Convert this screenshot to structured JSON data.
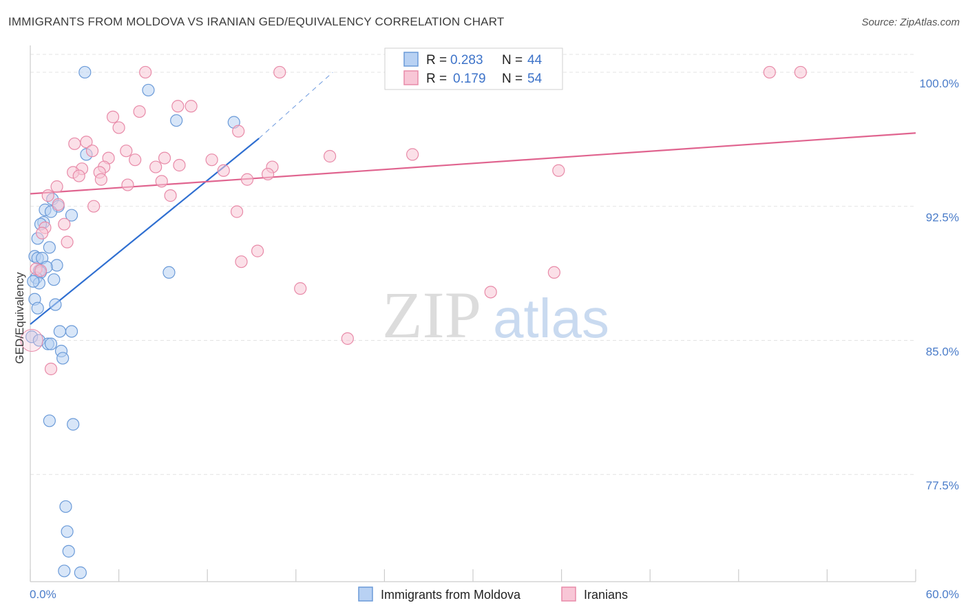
{
  "title": "IMMIGRANTS FROM MOLDOVA VS IRANIAN GED/EQUIVALENCY CORRELATION CHART",
  "source": "Source: ZipAtlas.com",
  "watermark": {
    "zip": "ZIP",
    "atlas": "atlas"
  },
  "legend": {
    "r_label": "R =",
    "n_label": "N =",
    "rows": [
      {
        "r": "0.283",
        "n": "44"
      },
      {
        "r": "0.179",
        "n": "54"
      }
    ]
  },
  "chart_data": {
    "type": "scatter",
    "title": "IMMIGRANTS FROM MOLDOVA VS IRANIAN GED/EQUIVALENCY CORRELATION CHART",
    "xlabel": "",
    "ylabel": "GED/Equivalency",
    "xlim": [
      0,
      60
    ],
    "ylim": [
      71.5,
      101.5
    ],
    "x_tick_labels": [
      "0.0%",
      "60.0%"
    ],
    "y_ticks": [
      77.5,
      85.0,
      92.5,
      100.0
    ],
    "y_tick_labels": [
      "77.5%",
      "85.0%",
      "92.5%",
      "100.0%"
    ],
    "grid": true,
    "legend_position": "top-center",
    "colors": {
      "moldova_fill": "#b8d1f3",
      "moldova_stroke": "#6a9ad8",
      "moldova_line": "#2f6fd1",
      "iran_fill": "#f8c6d6",
      "iran_stroke": "#e88aa8",
      "iran_line": "#e0648f",
      "grid": "#e3e3e3",
      "axis": "#cccccc"
    },
    "series": [
      {
        "name": "Immigrants from Moldova",
        "r": 0.283,
        "n": 44,
        "trend": {
          "x0": 0.0,
          "y0": 85.9,
          "x1": 15.5,
          "y1": 96.3,
          "dash_x1": 20.5,
          "dash_y1": 100.0
        },
        "points": [
          {
            "x": 3.7,
            "y": 100.0
          },
          {
            "x": 8.0,
            "y": 99.0
          },
          {
            "x": 9.9,
            "y": 97.3
          },
          {
            "x": 13.8,
            "y": 97.2
          },
          {
            "x": 3.8,
            "y": 95.4
          },
          {
            "x": 1.5,
            "y": 92.9
          },
          {
            "x": 1.9,
            "y": 92.5
          },
          {
            "x": 1.0,
            "y": 92.3
          },
          {
            "x": 1.4,
            "y": 92.2
          },
          {
            "x": 2.8,
            "y": 92.0
          },
          {
            "x": 0.9,
            "y": 91.6
          },
          {
            "x": 0.7,
            "y": 91.5
          },
          {
            "x": 0.5,
            "y": 90.7
          },
          {
            "x": 1.3,
            "y": 90.2
          },
          {
            "x": 0.3,
            "y": 89.7
          },
          {
            "x": 0.5,
            "y": 89.6
          },
          {
            "x": 0.8,
            "y": 89.6
          },
          {
            "x": 1.8,
            "y": 89.2
          },
          {
            "x": 1.1,
            "y": 89.1
          },
          {
            "x": 0.6,
            "y": 88.9
          },
          {
            "x": 0.7,
            "y": 88.8
          },
          {
            "x": 0.4,
            "y": 88.5
          },
          {
            "x": 1.6,
            "y": 88.4
          },
          {
            "x": 0.6,
            "y": 88.2
          },
          {
            "x": 9.4,
            "y": 88.8
          },
          {
            "x": 0.3,
            "y": 87.3
          },
          {
            "x": 0.5,
            "y": 86.8
          },
          {
            "x": 1.7,
            "y": 87.0
          },
          {
            "x": 2.0,
            "y": 85.5
          },
          {
            "x": 2.8,
            "y": 85.5
          },
          {
            "x": 0.1,
            "y": 85.2
          },
          {
            "x": 0.6,
            "y": 85.0
          },
          {
            "x": 1.2,
            "y": 84.8
          },
          {
            "x": 1.4,
            "y": 84.8
          },
          {
            "x": 2.1,
            "y": 84.4
          },
          {
            "x": 2.2,
            "y": 84.0
          },
          {
            "x": 1.3,
            "y": 80.5
          },
          {
            "x": 2.9,
            "y": 80.3
          },
          {
            "x": 2.4,
            "y": 75.7
          },
          {
            "x": 2.5,
            "y": 74.3
          },
          {
            "x": 2.6,
            "y": 73.2
          },
          {
            "x": 2.3,
            "y": 72.1
          },
          {
            "x": 3.4,
            "y": 72.0
          },
          {
            "x": 0.2,
            "y": 88.3
          }
        ]
      },
      {
        "name": "Iranians",
        "r": 0.179,
        "n": 54,
        "trend": {
          "x0": 0.0,
          "y0": 93.2,
          "x1": 60.0,
          "y1": 96.6
        },
        "points": [
          {
            "x": 7.8,
            "y": 100.0
          },
          {
            "x": 16.9,
            "y": 100.0
          },
          {
            "x": 50.1,
            "y": 100.0
          },
          {
            "x": 52.2,
            "y": 100.0
          },
          {
            "x": 10.0,
            "y": 98.1
          },
          {
            "x": 10.9,
            "y": 98.1
          },
          {
            "x": 7.4,
            "y": 97.8
          },
          {
            "x": 5.6,
            "y": 97.5
          },
          {
            "x": 6.0,
            "y": 96.9
          },
          {
            "x": 14.1,
            "y": 96.7
          },
          {
            "x": 3.8,
            "y": 96.1
          },
          {
            "x": 3.0,
            "y": 96.0
          },
          {
            "x": 4.2,
            "y": 95.6
          },
          {
            "x": 6.5,
            "y": 95.6
          },
          {
            "x": 20.3,
            "y": 95.3
          },
          {
            "x": 25.9,
            "y": 95.4
          },
          {
            "x": 5.3,
            "y": 95.2
          },
          {
            "x": 7.1,
            "y": 95.1
          },
          {
            "x": 9.1,
            "y": 95.2
          },
          {
            "x": 12.3,
            "y": 95.1
          },
          {
            "x": 5.0,
            "y": 94.7
          },
          {
            "x": 3.5,
            "y": 94.6
          },
          {
            "x": 8.5,
            "y": 94.7
          },
          {
            "x": 10.1,
            "y": 94.8
          },
          {
            "x": 16.4,
            "y": 94.7
          },
          {
            "x": 13.1,
            "y": 94.5
          },
          {
            "x": 35.8,
            "y": 94.5
          },
          {
            "x": 2.9,
            "y": 94.4
          },
          {
            "x": 4.7,
            "y": 94.4
          },
          {
            "x": 16.1,
            "y": 94.3
          },
          {
            "x": 3.3,
            "y": 94.2
          },
          {
            "x": 4.8,
            "y": 94.0
          },
          {
            "x": 8.9,
            "y": 93.9
          },
          {
            "x": 14.7,
            "y": 94.0
          },
          {
            "x": 1.8,
            "y": 93.6
          },
          {
            "x": 6.6,
            "y": 93.7
          },
          {
            "x": 1.2,
            "y": 93.1
          },
          {
            "x": 9.5,
            "y": 93.1
          },
          {
            "x": 4.3,
            "y": 92.5
          },
          {
            "x": 1.9,
            "y": 92.6
          },
          {
            "x": 14.0,
            "y": 92.2
          },
          {
            "x": 2.3,
            "y": 91.5
          },
          {
            "x": 1.0,
            "y": 91.3
          },
          {
            "x": 0.8,
            "y": 91.0
          },
          {
            "x": 2.5,
            "y": 90.5
          },
          {
            "x": 15.4,
            "y": 90.0
          },
          {
            "x": 14.3,
            "y": 89.4
          },
          {
            "x": 0.4,
            "y": 89.0
          },
          {
            "x": 0.7,
            "y": 88.9
          },
          {
            "x": 35.5,
            "y": 88.8
          },
          {
            "x": 18.3,
            "y": 87.9
          },
          {
            "x": 31.2,
            "y": 87.7
          },
          {
            "x": 21.5,
            "y": 85.1
          },
          {
            "x": 1.4,
            "y": 83.4
          }
        ]
      }
    ]
  },
  "bottom_legend": [
    "Immigrants from Moldova",
    "Iranians"
  ]
}
